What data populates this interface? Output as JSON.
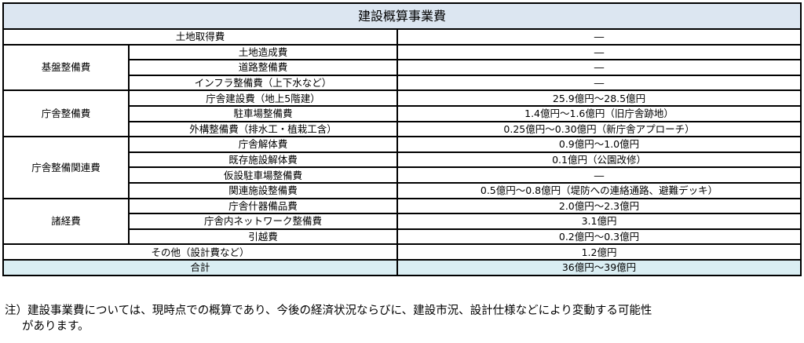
{
  "title": "建設概算事業費",
  "rows": {
    "land": {
      "label": "土地取得費",
      "value": "―"
    },
    "base": {
      "category": "基盤整備費",
      "items": [
        {
          "label": "土地造成費",
          "value": "―"
        },
        {
          "label": "道路整備費",
          "value": "―"
        },
        {
          "label": "インフラ整備費（上下水など）",
          "value": "―"
        }
      ]
    },
    "chosha": {
      "category": "庁舎整備費",
      "items": [
        {
          "label": "庁舎建設費（地上5階建）",
          "value": "25.9億円～28.5億円"
        },
        {
          "label": "駐車場整備費",
          "value": "1.4億円～1.6億円（旧庁舎跡地）"
        },
        {
          "label": "外構整備費（排水工・植栽工含）",
          "value": "0.25億円～0.30億円（新庁舎アプローチ）"
        }
      ]
    },
    "related": {
      "category": "庁舎整備関連費",
      "items": [
        {
          "label": "庁舎解体費",
          "value": "0.9億円～1.0億円"
        },
        {
          "label": "既存施設解体費",
          "value": "0.1億円（公園改修）"
        },
        {
          "label": "仮設駐車場整備費",
          "value": "―"
        },
        {
          "label": "関連施設整備費",
          "value": "0.5億円～0.8億円（堤防への連絡通路、避難デッキ）"
        }
      ]
    },
    "misc": {
      "category": "諸経費",
      "items": [
        {
          "label": "庁舎什器備品費",
          "value": "2.0億円～2.3億円"
        },
        {
          "label": "庁舎内ネットワーク整備費",
          "value": "3.1億円"
        },
        {
          "label": "引越費",
          "value": "0.2億円～0.3億円"
        }
      ]
    },
    "other": {
      "label": "その他（設計費など）",
      "value": "1.2億円"
    },
    "total": {
      "label": "合計",
      "value": "36億円～39億円"
    }
  },
  "note": {
    "line1": "注）建設事業費については、現時点での概算であり、今後の経済状況ならびに、建設市況、設計仕様などにより変動する可能性",
    "line2": "があります。"
  },
  "colors": {
    "header_bg": "#dce6f1",
    "total_bg": "#daeef3"
  }
}
